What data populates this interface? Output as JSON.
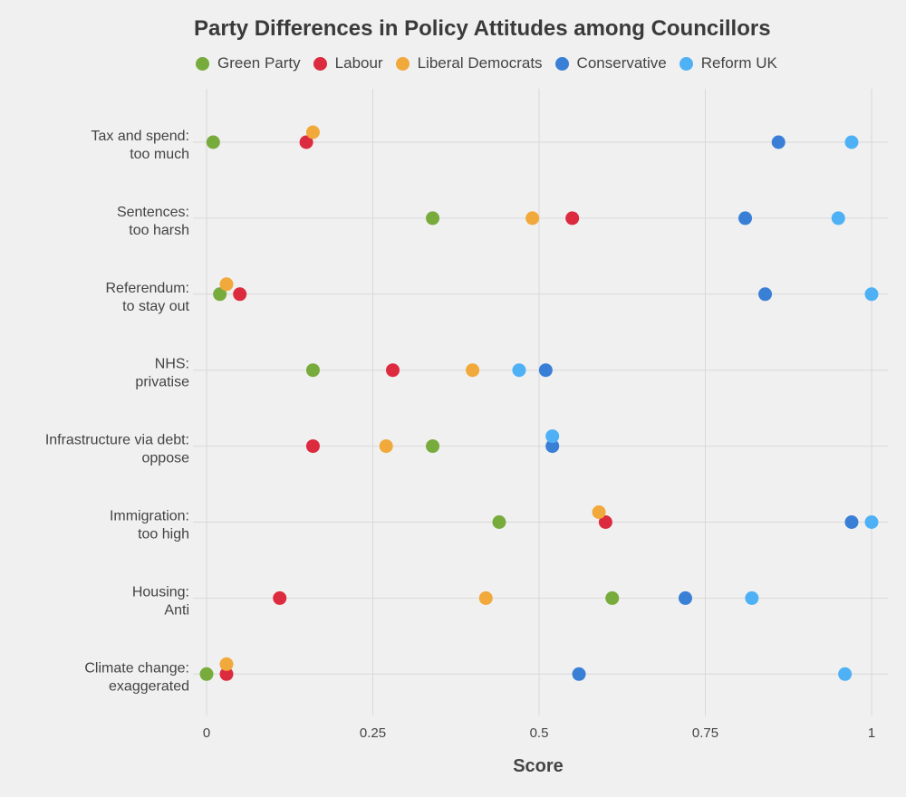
{
  "chart_data": {
    "type": "scatter",
    "title": "Party Differences in Policy Attitudes among Councillors",
    "xlabel": "Score",
    "ylabel": "",
    "xlim": [
      0,
      1
    ],
    "x_ticks": [
      0,
      0.25,
      0.5,
      0.75,
      1
    ],
    "x_tick_labels": [
      "0",
      "0.25",
      "0.5",
      "0.75",
      "1"
    ],
    "grid": true,
    "legend_position": "top",
    "categories": [
      [
        "Tax and spend:",
        "too much"
      ],
      [
        "Sentences:",
        "too harsh"
      ],
      [
        "Referendum:",
        "to stay out"
      ],
      [
        "NHS:",
        "privatise"
      ],
      [
        "Infrastructure via debt:",
        "oppose"
      ],
      [
        "Immigration:",
        "too high"
      ],
      [
        "Housing:",
        "Anti"
      ],
      [
        "Climate change:",
        "exaggerated"
      ]
    ],
    "series": [
      {
        "name": "Green Party",
        "color": "#77ab3c",
        "values": [
          0.01,
          0.34,
          0.02,
          0.16,
          0.34,
          0.44,
          0.61,
          0.0
        ]
      },
      {
        "name": "Labour",
        "color": "#dc2a3e",
        "values": [
          0.15,
          0.55,
          0.05,
          0.28,
          0.16,
          0.6,
          0.11,
          0.03
        ]
      },
      {
        "name": "Liberal Democrats",
        "color": "#f0a93a",
        "values": [
          0.16,
          0.49,
          0.03,
          0.4,
          0.27,
          0.59,
          0.42,
          0.03
        ]
      },
      {
        "name": "Conservative",
        "color": "#3a7fd6",
        "values": [
          0.86,
          0.81,
          0.84,
          0.51,
          0.52,
          0.97,
          0.72,
          0.56
        ]
      },
      {
        "name": "Reform UK",
        "color": "#4fb1f5",
        "values": [
          0.97,
          0.95,
          1.0,
          0.47,
          0.52,
          1.0,
          0.82,
          0.96
        ]
      }
    ]
  }
}
